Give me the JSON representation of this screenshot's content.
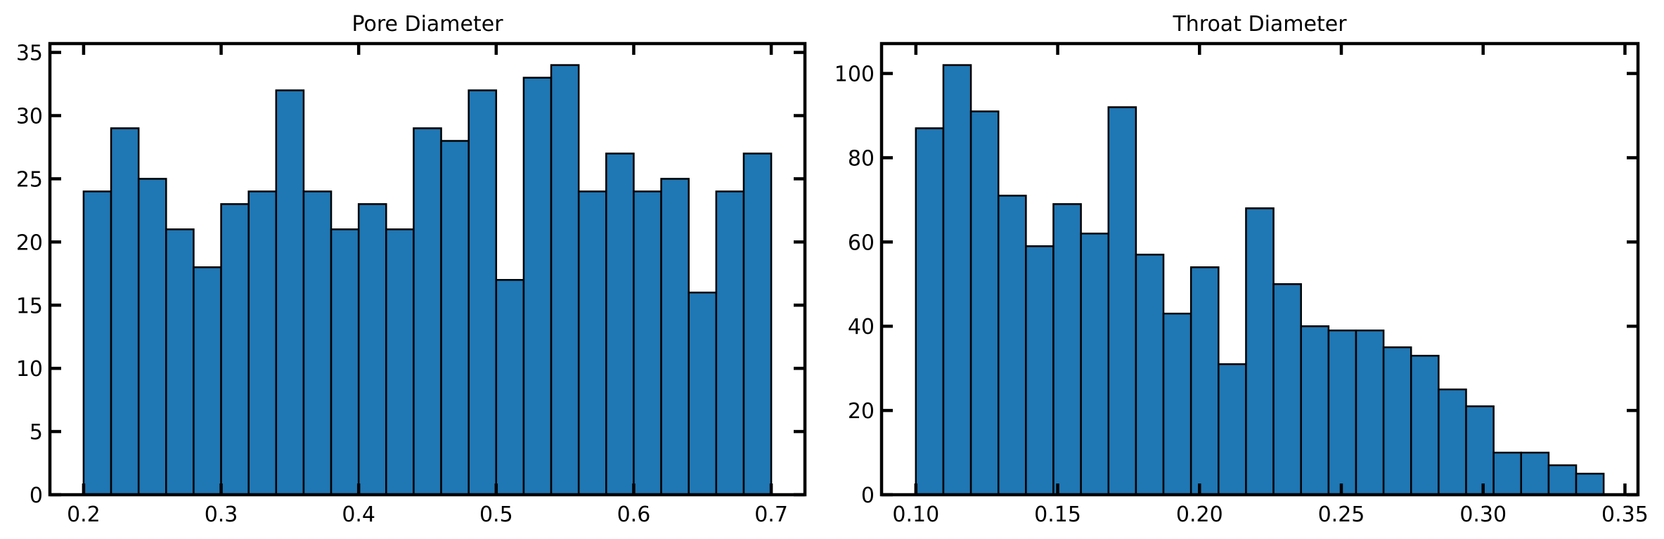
{
  "chart_data": [
    {
      "type": "bar",
      "title": "Pore Diameter",
      "xlabel": "",
      "ylabel": "",
      "bin_edges": [
        0.2,
        0.22,
        0.24,
        0.26,
        0.28,
        0.3,
        0.32,
        0.34,
        0.36,
        0.38,
        0.4,
        0.42,
        0.44,
        0.46,
        0.48,
        0.5,
        0.52,
        0.54,
        0.56,
        0.58,
        0.6,
        0.62,
        0.64,
        0.66,
        0.68,
        0.7
      ],
      "values": [
        24,
        29,
        25,
        21,
        18,
        23,
        24,
        32,
        24,
        21,
        23,
        21,
        29,
        28,
        32,
        17,
        33,
        34,
        24,
        27,
        24,
        25,
        16,
        24,
        27
      ],
      "xlim": [
        0.1755,
        0.7245
      ],
      "ylim": [
        0,
        35.7
      ],
      "xticks": [
        0.2,
        0.3,
        0.4,
        0.5,
        0.6,
        0.7
      ],
      "xtick_labels": [
        "0.2",
        "0.3",
        "0.4",
        "0.5",
        "0.6",
        "0.7"
      ],
      "yticks": [
        0,
        5,
        10,
        15,
        20,
        25,
        30,
        35
      ],
      "ytick_labels": [
        "0",
        "5",
        "10",
        "15",
        "20",
        "25",
        "30",
        "35"
      ],
      "bar_color": "#1f77b4",
      "edge_color": "#000000",
      "grid": false
    },
    {
      "type": "bar",
      "title": "Throat Diameter",
      "xlabel": "",
      "ylabel": "",
      "bin_edges": [
        0.1,
        0.1097,
        0.1194,
        0.1291,
        0.1388,
        0.1485,
        0.1582,
        0.1679,
        0.1776,
        0.1873,
        0.197,
        0.2067,
        0.2164,
        0.2261,
        0.2358,
        0.2455,
        0.2552,
        0.2649,
        0.2746,
        0.2843,
        0.294,
        0.3037,
        0.3134,
        0.3231,
        0.3328,
        0.3425
      ],
      "values": [
        87,
        102,
        91,
        71,
        59,
        69,
        62,
        92,
        57,
        43,
        54,
        31,
        68,
        50,
        40,
        39,
        39,
        35,
        33,
        25,
        21,
        10,
        10,
        7,
        5
      ],
      "xlim": [
        0.0879,
        0.3546
      ],
      "ylim": [
        0,
        107.1
      ],
      "xticks": [
        0.1,
        0.15,
        0.2,
        0.25,
        0.3,
        0.35
      ],
      "xtick_labels": [
        "0.10",
        "0.15",
        "0.20",
        "0.25",
        "0.30",
        "0.35"
      ],
      "yticks": [
        0,
        20,
        40,
        60,
        80,
        100
      ],
      "ytick_labels": [
        "0",
        "20",
        "40",
        "60",
        "80",
        "100"
      ],
      "bar_color": "#1f77b4",
      "edge_color": "#000000",
      "grid": false
    }
  ]
}
